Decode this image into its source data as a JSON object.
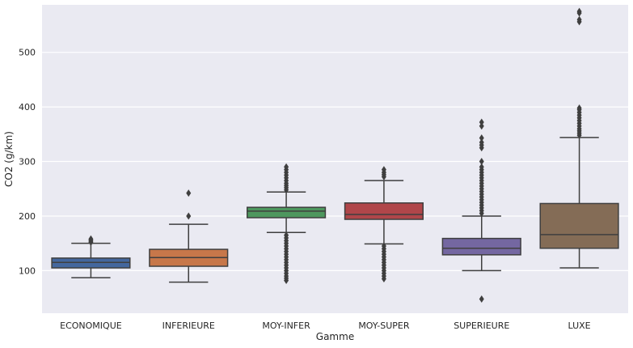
{
  "chart_data": {
    "type": "box",
    "xlabel": "Gamme",
    "ylabel": "CO2 (g/km)",
    "ylim": [
      22,
      587
    ],
    "yticks": [
      100,
      200,
      300,
      400,
      500
    ],
    "grid": true,
    "background": "#eaeaf2",
    "categories": [
      "ECONOMIQUE",
      "INFERIEURE",
      "MOY-INFER",
      "MOY-SUPER",
      "SUPERIEURE",
      "LUXE"
    ],
    "colors": [
      "#4c72b0",
      "#dd8452",
      "#55a868",
      "#c44e52",
      "#8172b3",
      "#937860"
    ],
    "boxes": [
      {
        "category": "ECONOMIQUE",
        "whisker_low": 87,
        "q1": 105,
        "median": 115,
        "q3": 123,
        "whisker_high": 150,
        "outliers": [
          152,
          154,
          156,
          158
        ]
      },
      {
        "category": "INFERIEURE",
        "whisker_low": 79,
        "q1": 108,
        "median": 124,
        "q3": 139,
        "whisker_high": 185,
        "outliers": [
          200,
          242
        ]
      },
      {
        "category": "MOY-INFER",
        "whisker_low": 170,
        "q1": 197,
        "median": 209,
        "q3": 216,
        "whisker_high": 244,
        "outliers": [
          82,
          86,
          90,
          95,
          100,
          105,
          110,
          115,
          120,
          125,
          130,
          135,
          140,
          145,
          150,
          155,
          160,
          165,
          248,
          252,
          256,
          260,
          265,
          270,
          275,
          280,
          285,
          290
        ]
      },
      {
        "category": "MOY-SUPER",
        "whisker_low": 149,
        "q1": 194,
        "median": 203,
        "q3": 224,
        "whisker_high": 265,
        "outliers": [
          85,
          90,
          95,
          100,
          105,
          110,
          115,
          120,
          125,
          130,
          135,
          140,
          145,
          272,
          276,
          280,
          285
        ]
      },
      {
        "category": "SUPERIEURE",
        "whisker_low": 100,
        "q1": 129,
        "median": 141,
        "q3": 159,
        "whisker_high": 200,
        "outliers": [
          48,
          205,
          210,
          215,
          220,
          225,
          230,
          235,
          240,
          245,
          250,
          255,
          260,
          265,
          270,
          275,
          280,
          285,
          290,
          300,
          325,
          330,
          335,
          343,
          365,
          372
        ]
      },
      {
        "category": "LUXE",
        "whisker_low": 105,
        "q1": 141,
        "median": 166,
        "q3": 223,
        "whisker_high": 344,
        "outliers": [
          348,
          352,
          356,
          360,
          365,
          370,
          375,
          380,
          385,
          390,
          395,
          398,
          556,
          560,
          572,
          575
        ]
      }
    ]
  }
}
